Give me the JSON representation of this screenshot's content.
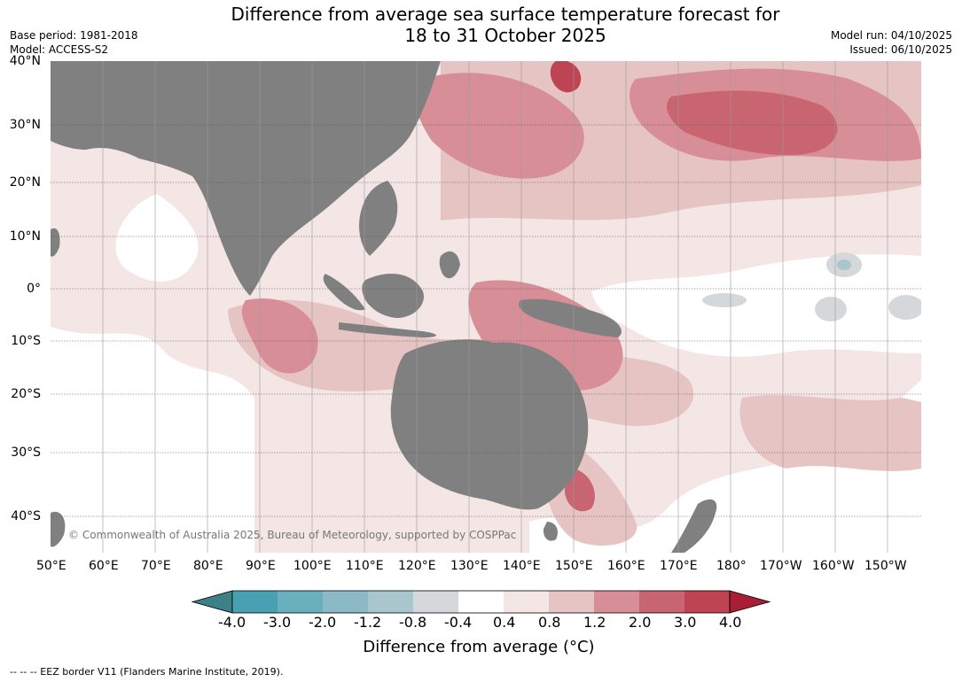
{
  "title": {
    "line1": "Difference from average sea surface temperature forecast for",
    "line2": "18 to 31 October 2025"
  },
  "meta": {
    "base_period": "Base period: 1981-2018",
    "model": "Model: ACCESS-S2",
    "model_run": "Model run: 04/10/2025",
    "issued": "Issued: 06/10/2025"
  },
  "map": {
    "lat_labels": [
      "40°N",
      "30°N",
      "20°N",
      "10°N",
      "0°",
      "10°S",
      "20°S",
      "30°S",
      "40°S"
    ],
    "lon_labels": [
      "50°E",
      "60°E",
      "70°E",
      "80°E",
      "90°E",
      "100°E",
      "110°E",
      "120°E",
      "130°E",
      "140°E",
      "150°E",
      "160°E",
      "170°E",
      "180°",
      "170°W",
      "160°W",
      "150°W"
    ],
    "copyright": "© Commonwealth of Australia 2025, Bureau of Meteorology, supported by COSPPac",
    "land_color": "#808080"
  },
  "colorbar": {
    "ticks": [
      "-4.0",
      "-3.0",
      "-2.0",
      "-1.2",
      "-0.8",
      "-0.4",
      "0.4",
      "0.8",
      "1.2",
      "2.0",
      "3.0",
      "4.0"
    ],
    "colors": [
      "#3c8088",
      "#48a0b2",
      "#6aafbd",
      "#8bb9c6",
      "#a9c6cc",
      "#d4d8da",
      "#ffffff",
      "#f3e6e5",
      "#e6c4c3",
      "#d88e96",
      "#c96571",
      "#be4453",
      "#a71e35"
    ],
    "label": "Difference from average (°C)"
  },
  "footer": "--  --  -- EEZ border V11 (Flanders Marine Institute, 2019)."
}
